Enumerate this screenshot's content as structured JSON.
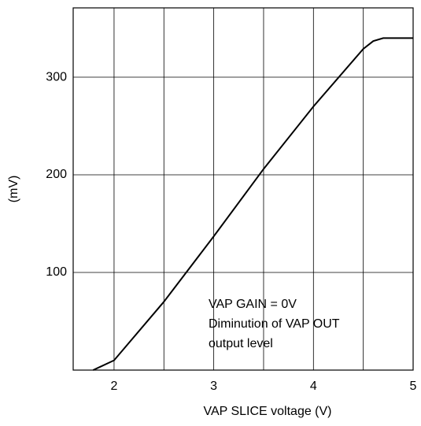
{
  "chart_data": {
    "type": "line",
    "x": [
      1.79,
      2.0,
      2.5,
      3.0,
      3.5,
      4.0,
      4.5,
      4.6,
      4.7,
      5.0
    ],
    "series": [
      {
        "color": "#000000",
        "values": [
          0,
          10,
          70,
          137,
          206,
          270,
          329,
          337,
          340,
          340
        ]
      }
    ],
    "xlim": [
      1.59,
      5
    ],
    "ylim": [
      0,
      371
    ],
    "xticks": [
      2,
      3,
      4,
      5
    ],
    "xminor": [
      2.5,
      3.5,
      4.5
    ],
    "yticks": [
      100,
      200,
      300
    ],
    "grid": true,
    "xlabel": "VAP SLICE voltage   (V)",
    "ylabel": "(mV)",
    "annotation": [
      "VAP GAIN = 0V",
      "Diminution of VAP OUT",
      "output level"
    ]
  }
}
